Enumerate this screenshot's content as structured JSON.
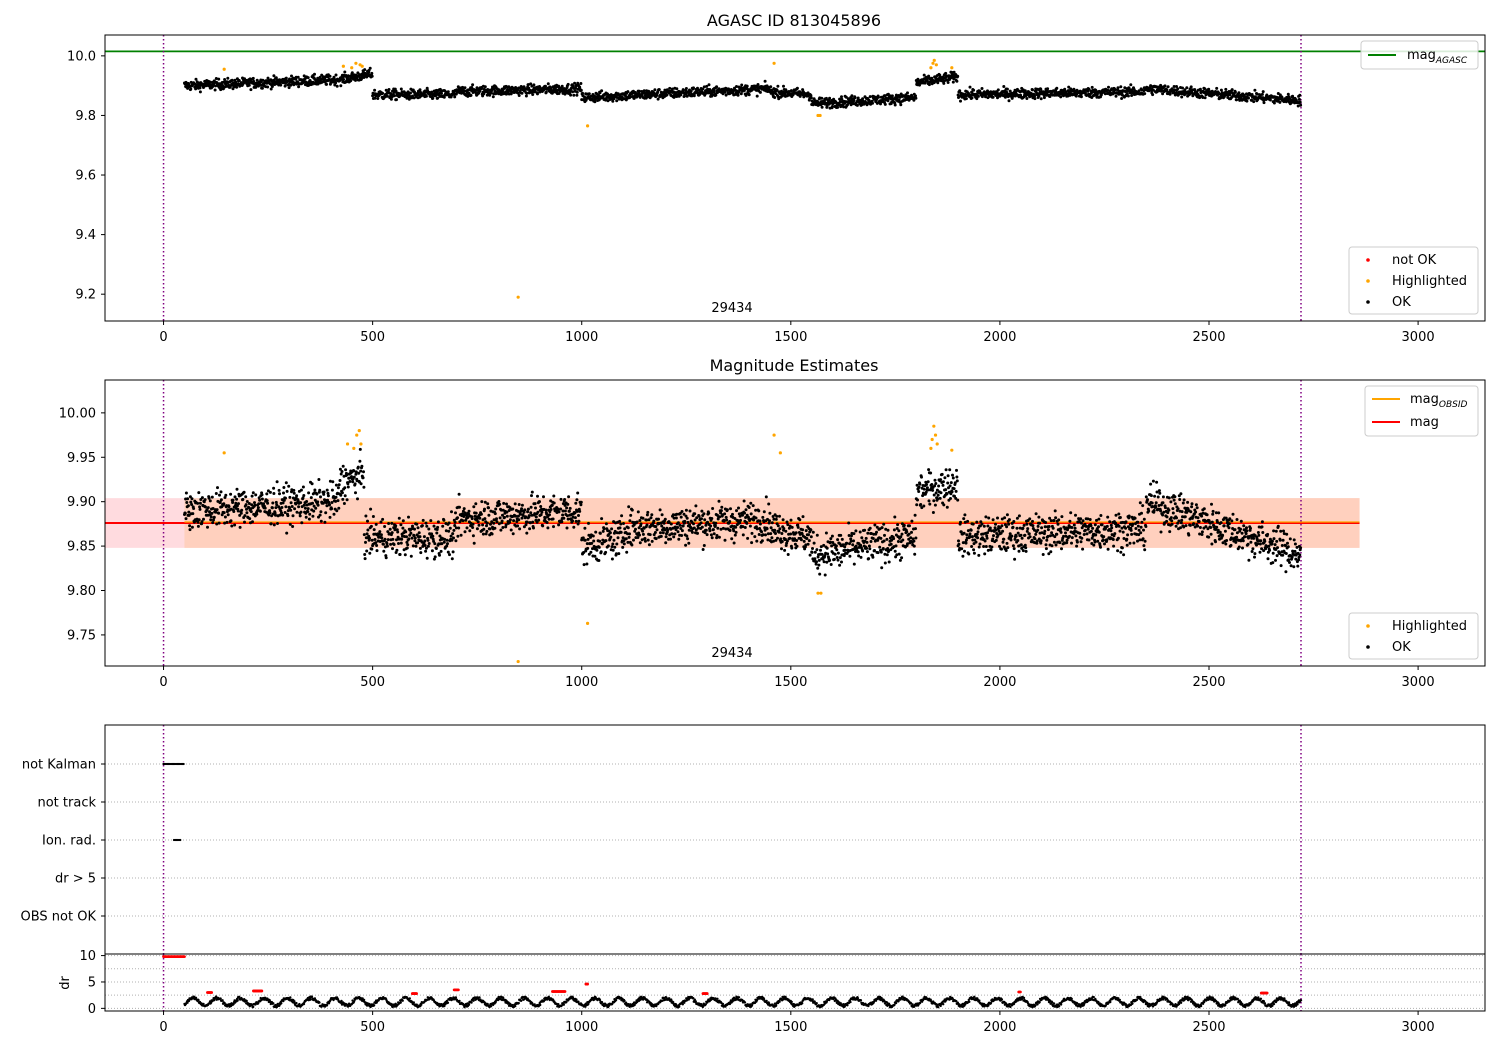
{
  "chart_data": [
    {
      "id": "p1",
      "type": "scatter",
      "title": "AGASC ID 813045896",
      "xlim": [
        -140,
        3160
      ],
      "ylim": [
        9.11,
        10.07
      ],
      "xticks": [
        0,
        500,
        1000,
        1500,
        2000,
        2500,
        3000
      ],
      "yticks": [
        9.2,
        9.4,
        9.6,
        9.8,
        10.0
      ],
      "ytick_labels": [
        "9.2",
        "9.4",
        "9.6",
        "9.8",
        "10.0"
      ],
      "vlines": [
        0,
        2720
      ],
      "hline": {
        "name": "mag",
        "subscript": "AGASC",
        "value": 10.015,
        "color": "#008000"
      },
      "obsid_label": {
        "text": "29434",
        "x": 1360,
        "y": 9.14
      },
      "ok_segments": [
        {
          "x": [
            50,
            420
          ],
          "y": [
            9.9,
            9.92
          ]
        },
        {
          "x": [
            420,
            500
          ],
          "y": [
            9.92,
            9.94
          ]
        },
        {
          "x": [
            500,
            700
          ],
          "y": [
            9.87,
            9.87
          ]
        },
        {
          "x": [
            700,
            1000
          ],
          "y": [
            9.88,
            9.89
          ]
        },
        {
          "x": [
            1000,
            1450
          ],
          "y": [
            9.86,
            9.89
          ]
        },
        {
          "x": [
            1450,
            1550
          ],
          "y": [
            9.88,
            9.87
          ]
        },
        {
          "x": [
            1550,
            1800
          ],
          "y": [
            9.84,
            9.86
          ]
        },
        {
          "x": [
            1800,
            1900
          ],
          "y": [
            9.91,
            9.93
          ]
        },
        {
          "x": [
            1900,
            2350
          ],
          "y": [
            9.87,
            9.88
          ]
        },
        {
          "x": [
            2350,
            2720
          ],
          "y": [
            9.89,
            9.85
          ]
        }
      ],
      "highlighted": [
        {
          "x": 145,
          "y": 9.955
        },
        {
          "x": 430,
          "y": 9.965
        },
        {
          "x": 450,
          "y": 9.96
        },
        {
          "x": 460,
          "y": 9.975
        },
        {
          "x": 470,
          "y": 9.97
        },
        {
          "x": 475,
          "y": 9.965
        },
        {
          "x": 848,
          "y": 9.19
        },
        {
          "x": 1014,
          "y": 9.765
        },
        {
          "x": 1460,
          "y": 9.975
        },
        {
          "x": 1565,
          "y": 9.8
        },
        {
          "x": 1570,
          "y": 9.8
        },
        {
          "x": 1835,
          "y": 9.96
        },
        {
          "x": 1840,
          "y": 9.975
        },
        {
          "x": 1843,
          "y": 9.985
        },
        {
          "x": 1848,
          "y": 9.97
        },
        {
          "x": 1885,
          "y": 9.96
        }
      ],
      "legend_hline": "top-right",
      "legend_points": {
        "placement": "lower-right",
        "entries": [
          {
            "label": "not OK",
            "color": "#ff0000"
          },
          {
            "label": "Highlighted",
            "color": "#ffa500"
          },
          {
            "label": "OK",
            "color": "#000000"
          }
        ]
      }
    },
    {
      "id": "p2",
      "type": "scatter",
      "title": "Magnitude Estimates",
      "xlim": [
        -140,
        3160
      ],
      "ylim": [
        9.715,
        10.037
      ],
      "xticks": [
        0,
        500,
        1000,
        1500,
        2000,
        2500,
        3000
      ],
      "yticks": [
        9.75,
        9.8,
        9.85,
        9.9,
        9.95,
        10.0
      ],
      "ytick_labels": [
        "9.75",
        "9.80",
        "9.85",
        "9.90",
        "9.95",
        "10.00"
      ],
      "vlines": [
        0,
        2720
      ],
      "mag_line": {
        "value": 9.876,
        "color": "#ff0000"
      },
      "band_red": {
        "ylim": [
          9.848,
          9.904
        ],
        "xlim": [
          -140,
          2860
        ],
        "color": "#ffb0b8"
      },
      "band_orange": {
        "ylim": [
          9.848,
          9.904
        ],
        "xlim": [
          50,
          2860
        ],
        "color": "#ffc8a8"
      },
      "obsid_label": {
        "text": "29434",
        "x": 1360,
        "y": 9.725
      },
      "ok_segments": [
        {
          "x": [
            50,
            420
          ],
          "y": [
            9.89,
            9.9
          ]
        },
        {
          "x": [
            420,
            480
          ],
          "y": [
            9.92,
            9.93
          ]
        },
        {
          "x": [
            480,
            700
          ],
          "y": [
            9.86,
            9.86
          ]
        },
        {
          "x": [
            700,
            1000
          ],
          "y": [
            9.88,
            9.89
          ]
        },
        {
          "x": [
            1000,
            1100
          ],
          "y": [
            9.85,
            9.86
          ]
        },
        {
          "x": [
            1100,
            1450
          ],
          "y": [
            9.87,
            9.88
          ]
        },
        {
          "x": [
            1450,
            1550
          ],
          "y": [
            9.87,
            9.86
          ]
        },
        {
          "x": [
            1550,
            1800
          ],
          "y": [
            9.84,
            9.86
          ]
        },
        {
          "x": [
            1800,
            1900
          ],
          "y": [
            9.91,
            9.92
          ]
        },
        {
          "x": [
            1900,
            2350
          ],
          "y": [
            9.86,
            9.87
          ]
        },
        {
          "x": [
            2350,
            2720
          ],
          "y": [
            9.9,
            9.84
          ]
        }
      ],
      "highlighted": [
        {
          "x": 145,
          "y": 9.955
        },
        {
          "x": 440,
          "y": 9.965
        },
        {
          "x": 455,
          "y": 9.96
        },
        {
          "x": 462,
          "y": 9.975
        },
        {
          "x": 468,
          "y": 9.98
        },
        {
          "x": 472,
          "y": 9.965
        },
        {
          "x": 848,
          "y": 9.72
        },
        {
          "x": 1014,
          "y": 9.763
        },
        {
          "x": 1460,
          "y": 9.975
        },
        {
          "x": 1475,
          "y": 9.955
        },
        {
          "x": 1565,
          "y": 9.797
        },
        {
          "x": 1572,
          "y": 9.797
        },
        {
          "x": 1835,
          "y": 9.96
        },
        {
          "x": 1838,
          "y": 9.97
        },
        {
          "x": 1842,
          "y": 9.985
        },
        {
          "x": 1846,
          "y": 9.975
        },
        {
          "x": 1850,
          "y": 9.965
        },
        {
          "x": 1885,
          "y": 9.958
        }
      ],
      "legend_lines": {
        "placement": "top-right",
        "entries": [
          {
            "label": "mag",
            "subscript": "OBSID",
            "color": "#ffa500"
          },
          {
            "label": "mag",
            "subscript": "",
            "color": "#ff0000"
          }
        ]
      },
      "legend_points": {
        "placement": "lower-right",
        "entries": [
          {
            "label": "Highlighted",
            "color": "#ffa500"
          },
          {
            "label": "OK",
            "color": "#000000"
          }
        ]
      }
    },
    {
      "id": "p3",
      "type": "scatter",
      "xlim": [
        -140,
        3160
      ],
      "categories": [
        "not Kalman",
        "not track",
        "Ion. rad.",
        "dr > 5",
        "OBS not OK"
      ],
      "vlines": [
        0,
        2720
      ],
      "flag_points": [
        {
          "category": "not Kalman",
          "x": [
            0,
            50
          ]
        },
        {
          "category": "Ion. rad.",
          "x": [
            25,
            40
          ]
        }
      ]
    },
    {
      "id": "p4",
      "type": "scatter",
      "xlim": [
        -140,
        3160
      ],
      "ylim": [
        -0.5,
        10.3
      ],
      "ylabel": "dr",
      "xticks": [
        0,
        500,
        1000,
        1500,
        2000,
        2500,
        3000
      ],
      "yticks": [
        0,
        5,
        10
      ],
      "ytick_labels": [
        "0",
        "5",
        "10"
      ],
      "vlines": [
        0,
        2720
      ],
      "red_points": [
        {
          "x": [
            0,
            50
          ],
          "y": 9.8
        },
        {
          "x": [
            105,
            115
          ],
          "y": 3.0
        },
        {
          "x": [
            215,
            235
          ],
          "y": 3.3
        },
        {
          "x": [
            595,
            605
          ],
          "y": 2.8
        },
        {
          "x": [
            695,
            705
          ],
          "y": 3.5
        },
        {
          "x": [
            930,
            960
          ],
          "y": 3.2
        },
        {
          "x": [
            1010,
            1015
          ],
          "y": 4.6
        },
        {
          "x": [
            1290,
            1300
          ],
          "y": 2.8
        },
        {
          "x": [
            2045,
            2050
          ],
          "y": 3.1
        },
        {
          "x": [
            2625,
            2640
          ],
          "y": 2.9
        }
      ],
      "ok_range": {
        "x": [
          50,
          2720
        ],
        "y": [
          0.2,
          2.6
        ]
      }
    }
  ]
}
